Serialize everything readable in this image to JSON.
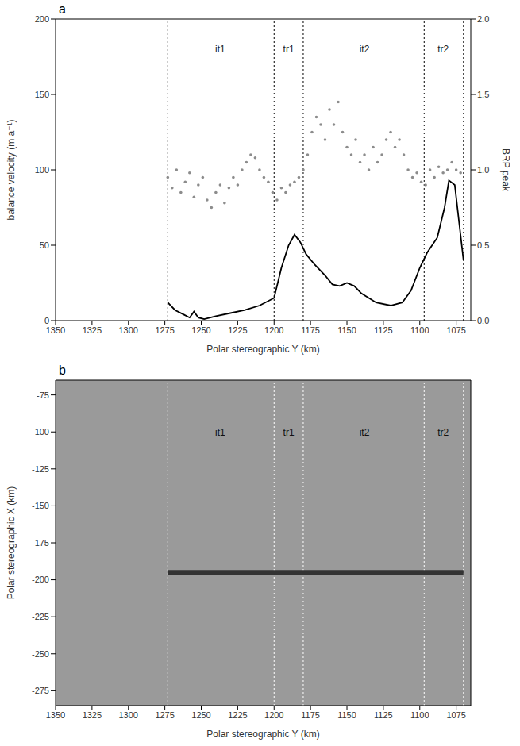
{
  "chart_data": [
    {
      "type": "scatter",
      "panel": "a",
      "x_label": "Polar stereographic Y (km)",
      "y_label": "balance velocity (m a⁻¹)",
      "y2_label": "BRP peak",
      "xlim": [
        1350,
        1065
      ],
      "xticks": [
        1350,
        1325,
        1300,
        1275,
        1250,
        1225,
        1200,
        1175,
        1150,
        1125,
        1100,
        1075
      ],
      "ylim": [
        0,
        200
      ],
      "yticks": [
        0,
        50,
        100,
        150,
        200
      ],
      "y2lim": [
        0,
        2
      ],
      "y2ticks": [
        {
          "value": 0,
          "label": "0.0"
        },
        {
          "value": 0.5,
          "label": "0.5"
        },
        {
          "value": 1,
          "label": "1.0"
        },
        {
          "value": 1.5,
          "label": "1.5"
        },
        {
          "value": 2,
          "label": "2.0"
        }
      ],
      "boundaries": [
        1273,
        1200,
        1180,
        1097,
        1070
      ],
      "regions": [
        {
          "label": "it1",
          "x": 1237
        },
        {
          "label": "tr1",
          "x": 1190
        },
        {
          "label": "it2",
          "x": 1138
        },
        {
          "label": "tr2",
          "x": 1084
        }
      ],
      "series": [
        {
          "type": "scatter",
          "color": "#8c8c8c",
          "marker": "circle",
          "x": [
            1273,
            1270,
            1267,
            1264,
            1261,
            1258,
            1255,
            1252,
            1249,
            1246,
            1243,
            1240,
            1237,
            1234,
            1231,
            1228,
            1225,
            1222,
            1219,
            1216,
            1213,
            1210,
            1207,
            1204,
            1201,
            1198,
            1195,
            1192,
            1189,
            1186,
            1183,
            1180,
            1177,
            1174,
            1171,
            1168,
            1165,
            1162,
            1159,
            1156,
            1153,
            1150,
            1147,
            1144,
            1141,
            1138,
            1135,
            1132,
            1129,
            1126,
            1123,
            1120,
            1117,
            1114,
            1111,
            1108,
            1105,
            1102,
            1099,
            1096,
            1093,
            1090,
            1087,
            1084,
            1081,
            1078,
            1075,
            1072
          ],
          "values": [
            95,
            88,
            100,
            85,
            92,
            98,
            82,
            90,
            95,
            80,
            75,
            85,
            90,
            78,
            88,
            95,
            90,
            100,
            105,
            110,
            108,
            100,
            95,
            92,
            85,
            80,
            88,
            85,
            90,
            92,
            95,
            100,
            110,
            125,
            135,
            130,
            120,
            140,
            130,
            145,
            125,
            115,
            110,
            120,
            105,
            110,
            100,
            115,
            105,
            110,
            120,
            125,
            115,
            120,
            110,
            100,
            95,
            98,
            92,
            90,
            100,
            95,
            102,
            98,
            100,
            105,
            100,
            98
          ]
        },
        {
          "type": "line",
          "axis": "y2",
          "color": "#000000",
          "line_style": "solid",
          "x": [
            1273,
            1268,
            1262,
            1258,
            1255,
            1252,
            1248,
            1240,
            1230,
            1220,
            1210,
            1200,
            1195,
            1190,
            1186,
            1182,
            1178,
            1172,
            1165,
            1160,
            1155,
            1150,
            1145,
            1140,
            1130,
            1120,
            1112,
            1106,
            1100,
            1095,
            1088,
            1083,
            1080,
            1076,
            1073,
            1070
          ],
          "values": [
            0.12,
            0.07,
            0.04,
            0.02,
            0.06,
            0.02,
            0.01,
            0.03,
            0.05,
            0.07,
            0.1,
            0.15,
            0.35,
            0.5,
            0.57,
            0.52,
            0.44,
            0.37,
            0.3,
            0.24,
            0.23,
            0.25,
            0.23,
            0.18,
            0.12,
            0.1,
            0.12,
            0.2,
            0.35,
            0.45,
            0.55,
            0.75,
            0.93,
            0.9,
            0.65,
            0.4
          ]
        }
      ]
    },
    {
      "type": "line",
      "panel": "b",
      "x_label": "Polar stereographic Y (km)",
      "y_label": "Polar stereographic X (km)",
      "xlim": [
        1350,
        1065
      ],
      "xticks": [
        1350,
        1325,
        1300,
        1275,
        1250,
        1225,
        1200,
        1175,
        1150,
        1125,
        1100,
        1075
      ],
      "ylim": [
        -285,
        -65
      ],
      "yticks": [
        -275,
        -250,
        -225,
        -200,
        -175,
        -150,
        -125,
        -100,
        -75
      ],
      "boundaries": [
        1273,
        1200,
        1180,
        1097,
        1070
      ],
      "regions": [
        {
          "label": "it1",
          "x": 1237
        },
        {
          "label": "tr1",
          "x": 1190
        },
        {
          "label": "it2",
          "x": 1138
        },
        {
          "label": "tr2",
          "x": 1084
        }
      ],
      "series": [
        {
          "type": "line",
          "color": "#333333",
          "line_style": "solid",
          "x": [
            1273,
            1070
          ],
          "values": [
            -195,
            -195
          ]
        }
      ]
    }
  ]
}
